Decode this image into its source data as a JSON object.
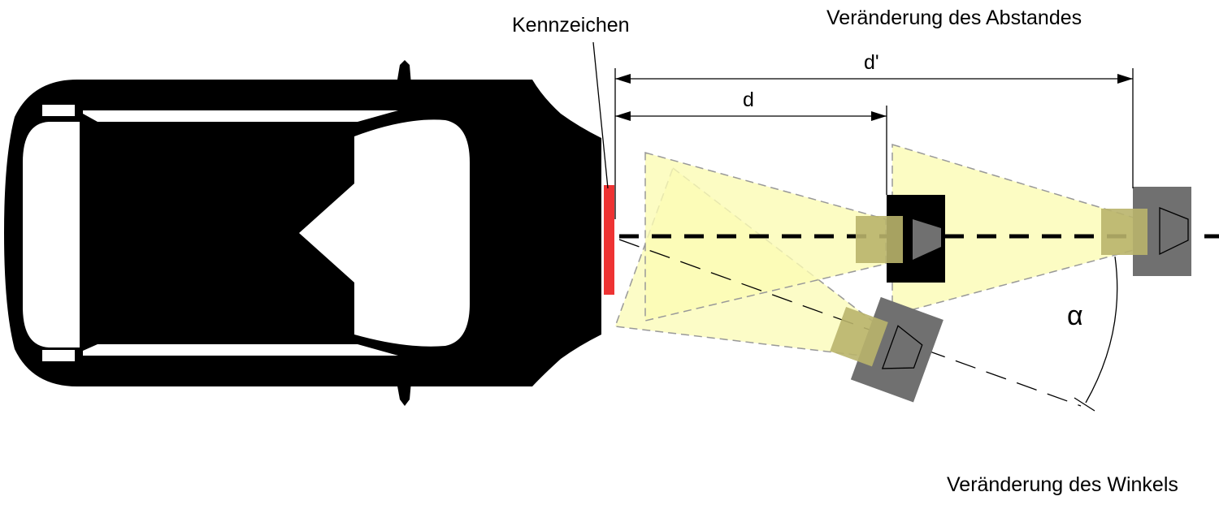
{
  "labels": {
    "license_plate": "Kennzeichen",
    "distance_change": "Veränderung des Abstandes",
    "angle_change": "Veränderung des Winkels",
    "distance_d": "d",
    "distance_d_prime": "d'",
    "angle_alpha": "α"
  },
  "colors": {
    "car_body": "#000000",
    "license_plate": "#ee3333",
    "field_of_view": "#fbfbb4",
    "camera_lens": "#b9b46c",
    "camera_housing_gray": "#707070",
    "camera_housing_black": "#000000",
    "dimension_lines": "#000000"
  },
  "icons": [
    "car-top-view-icon",
    "camera-icon"
  ]
}
